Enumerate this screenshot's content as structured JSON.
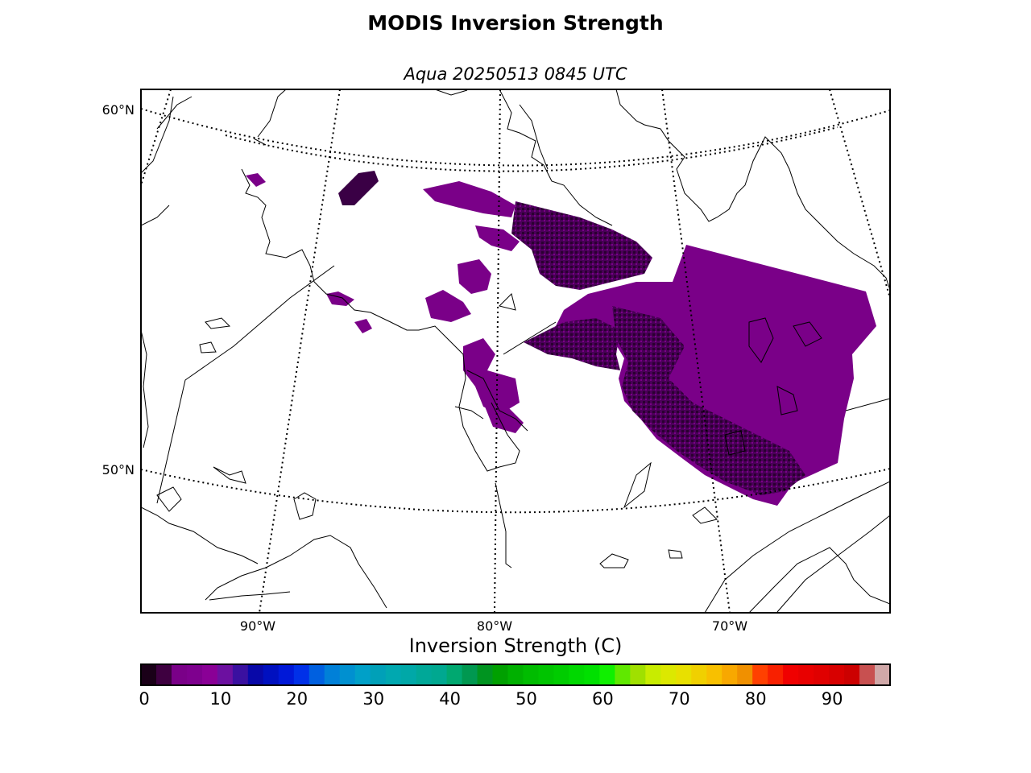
{
  "title": "MODIS Inversion Strength",
  "subtitle": "Aqua 20250513 0845 UTC",
  "map": {
    "lat_labels": [
      "60°N",
      "50°N"
    ],
    "lon_labels": [
      "90°W",
      "80°W",
      "70°W"
    ],
    "coastline_color": "#000000",
    "graticule_style": "dotted",
    "data_colors": [
      "#7a0088",
      "#3a0045",
      "#1c0020"
    ]
  },
  "colorbar": {
    "label": "Inversion Strength (C)",
    "min": 0,
    "max": 98,
    "step": 2,
    "ticks": [
      "0",
      "10",
      "20",
      "30",
      "40",
      "50",
      "60",
      "70",
      "80",
      "90"
    ],
    "tick_values": [
      0,
      10,
      20,
      30,
      40,
      50,
      60,
      70,
      80,
      90
    ],
    "colors": [
      "#1a0018",
      "#3e0040",
      "#7a0088",
      "#7e008e",
      "#8a0096",
      "#6c10a0",
      "#3a10a0",
      "#0808a8",
      "#0010c0",
      "#0018d8",
      "#0030e8",
      "#0060e0",
      "#0080d8",
      "#0090d0",
      "#00a0c8",
      "#00a0b8",
      "#00a8b0",
      "#00a8a8",
      "#00a898",
      "#00a890",
      "#00a870",
      "#009850",
      "#009420",
      "#00a000",
      "#00b000",
      "#00bc00",
      "#00c400",
      "#00cc00",
      "#00d800",
      "#00e000",
      "#10f000",
      "#60e800",
      "#a0e000",
      "#c8ec00",
      "#dce800",
      "#e8e000",
      "#f0d000",
      "#f8c000",
      "#f8a800",
      "#f09000",
      "#ff4000",
      "#f82000",
      "#f00000",
      "#e80000",
      "#e00000",
      "#d80000",
      "#cc0000",
      "#c85050",
      "#d0a8a8"
    ]
  }
}
